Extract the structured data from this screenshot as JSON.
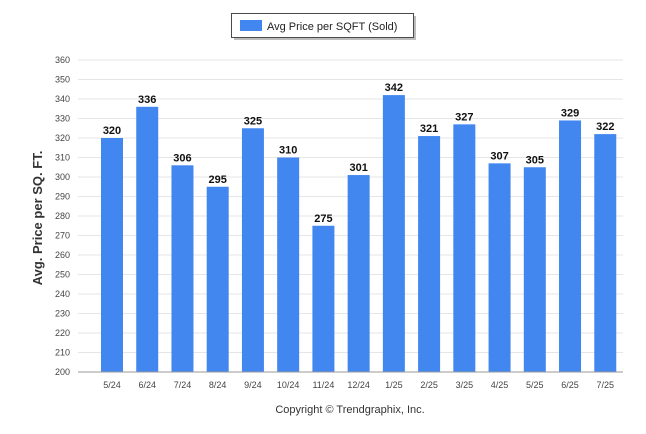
{
  "chart_data": {
    "type": "bar",
    "categories": [
      "5/24",
      "6/24",
      "7/24",
      "8/24",
      "9/24",
      "10/24",
      "11/24",
      "12/24",
      "1/25",
      "2/25",
      "3/25",
      "4/25",
      "5/25",
      "6/25",
      "7/25"
    ],
    "series": [
      {
        "name": "Avg Price per SQFT (Sold)",
        "values": [
          320,
          336,
          306,
          295,
          325,
          310,
          275,
          301,
          342,
          321,
          327,
          307,
          305,
          329,
          322
        ],
        "color": "#4287f0"
      }
    ],
    "ylabel": "Avg. Price per SQ. FT.",
    "xlabel": "",
    "ylim": [
      200,
      360
    ],
    "yticks": [
      200,
      210,
      220,
      230,
      240,
      250,
      260,
      270,
      280,
      290,
      300,
      310,
      320,
      330,
      340,
      350,
      360
    ],
    "grid": true,
    "legend_position": "top-center",
    "data_labels": true
  },
  "footer": {
    "credit": "Copyright © Trendgraphix, Inc."
  }
}
